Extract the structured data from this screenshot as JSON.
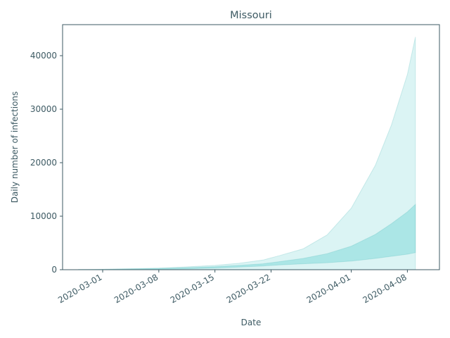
{
  "chart_data": {
    "type": "area",
    "title": "Missouri",
    "xlabel": "Date",
    "ylabel": "Daily number of infections",
    "xlim": [
      "2020-02-25",
      "2020-04-12"
    ],
    "ylim": [
      0,
      45800
    ],
    "x_ticks": [
      "2020-03-01",
      "2020-03-08",
      "2020-03-15",
      "2020-03-22",
      "2020-04-01",
      "2020-04-08"
    ],
    "y_ticks": [
      0,
      10000,
      20000,
      30000,
      40000
    ],
    "grid": false,
    "colors": {
      "band": "#5ccfcf",
      "edge": "#4fb8b8",
      "text": "#3d5a63"
    },
    "x": [
      "2020-02-27",
      "2020-03-01",
      "2020-03-04",
      "2020-03-08",
      "2020-03-11",
      "2020-03-15",
      "2020-03-18",
      "2020-03-21",
      "2020-03-23",
      "2020-03-26",
      "2020-03-29",
      "2020-04-01",
      "2020-04-04",
      "2020-04-06",
      "2020-04-08",
      "2020-04-09"
    ],
    "series": [
      {
        "band": "outer",
        "lower": [
          0,
          0,
          0,
          0,
          0,
          0,
          0,
          0,
          0,
          0,
          0,
          0,
          0,
          0,
          0,
          0
        ],
        "upper": [
          30,
          80,
          180,
          300,
          500,
          800,
          1200,
          1800,
          2600,
          3900,
          6500,
          11500,
          19500,
          27000,
          36500,
          43500
        ]
      },
      {
        "band": "inner",
        "lower": [
          0,
          10,
          30,
          80,
          150,
          300,
          500,
          700,
          900,
          1100,
          1300,
          1600,
          2100,
          2500,
          2900,
          3200
        ],
        "upper": [
          20,
          50,
          120,
          220,
          350,
          550,
          800,
          1100,
          1500,
          2100,
          3000,
          4400,
          6600,
          8600,
          10800,
          12200
        ]
      }
    ]
  }
}
